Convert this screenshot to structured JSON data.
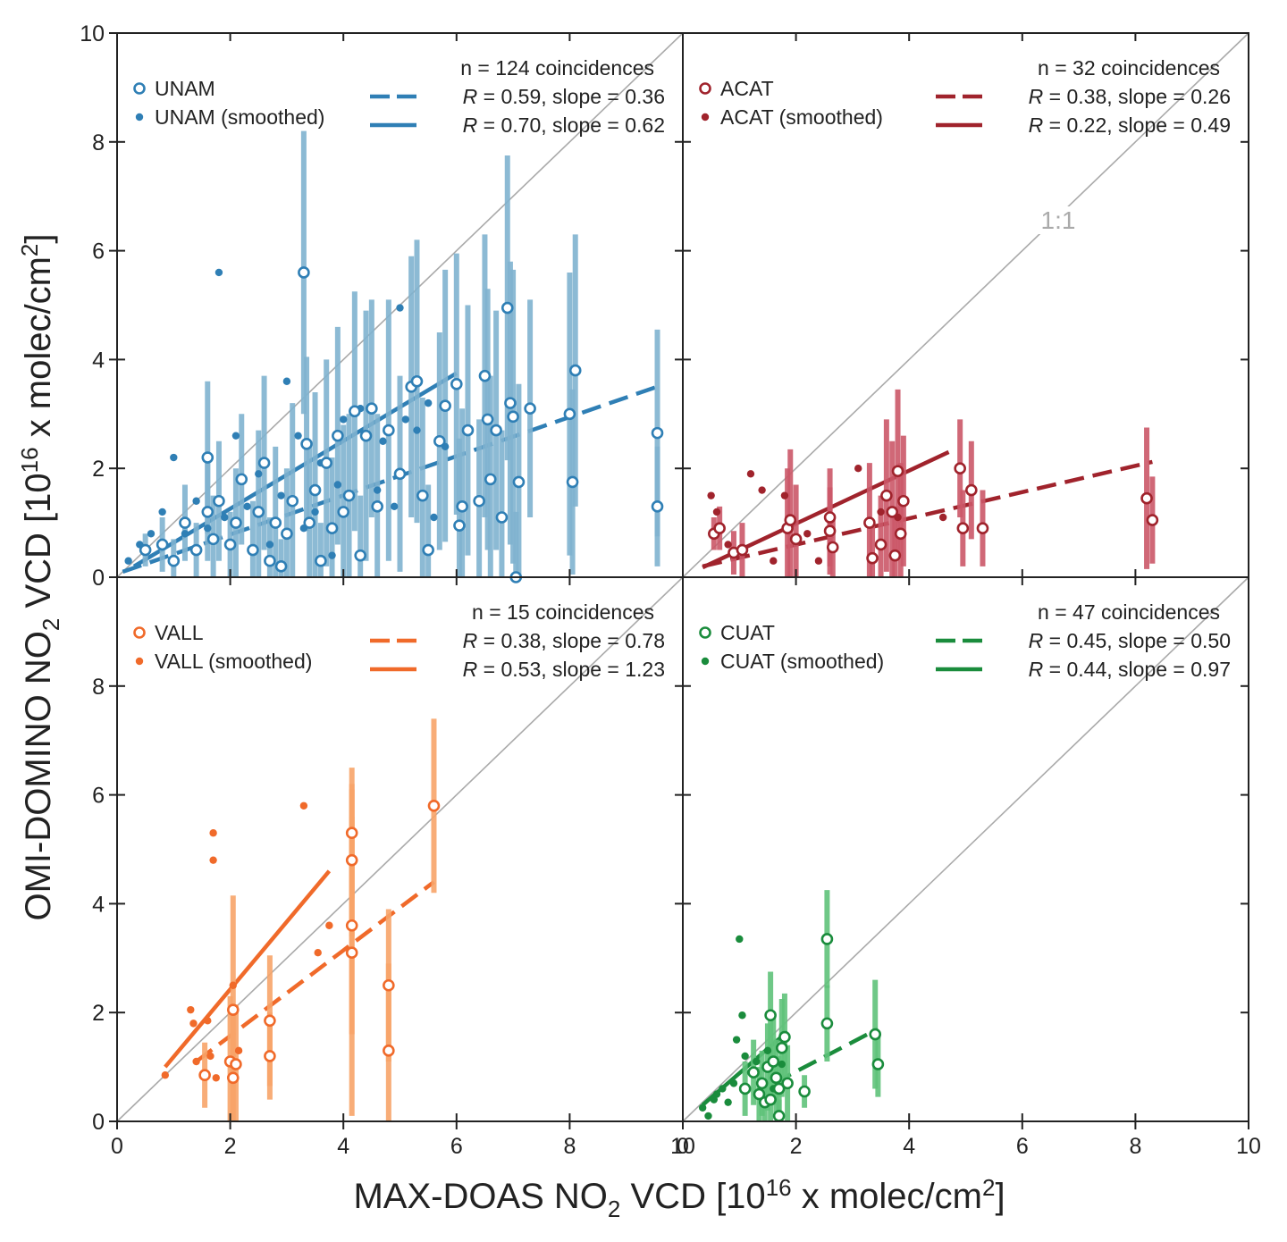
{
  "chart_data": {
    "type": "scatter",
    "title": "",
    "xlabel": "MAX-DOAS NO2 VCD [10^16 x molec/cm2]",
    "ylabel": "OMI-DOMINO NO2 VCD [10^16 x molec/cm2]",
    "xlabel_parts": {
      "pre": "MAX-DOAS NO",
      "sub": "2",
      "mid": " VCD [10",
      "sup1": "16",
      "mid2": " x molec/cm",
      "sup2": "2",
      "post": "]"
    },
    "ylabel_parts": {
      "pre": "OMI-DOMINO NO",
      "sub": "2",
      "mid": " VCD [10",
      "sup1": "16",
      "mid2": " x molec/cm",
      "sup2": "2",
      "post": "]"
    },
    "xlim": [
      0,
      10
    ],
    "ylim": [
      0,
      10
    ],
    "xticks": [
      0,
      2,
      4,
      6,
      8,
      10
    ],
    "yticks_top": [
      2,
      4,
      6,
      8,
      10
    ],
    "yticks_bottom": [
      0,
      2,
      4,
      6,
      8
    ],
    "one_to_one_label": "1:1",
    "panels": [
      {
        "station": "UNAM",
        "color": "#2f7fb5",
        "err_color": "#7fb3cf",
        "n_label": "n = 124 coincidences",
        "legend_open": "UNAM",
        "legend_smoothed": "UNAM (smoothed)",
        "fit_dashed": {
          "R": "0.59",
          "slope": "0.36",
          "text": " = 0.59, slope = 0.36",
          "x": [
            0.1,
            9.6
          ],
          "y": [
            0.1,
            3.52
          ]
        },
        "fit_solid": {
          "R": "0.70",
          "slope": "0.62",
          "text": " = 0.70, slope = 0.62",
          "x": [
            0.3,
            6.0
          ],
          "y": [
            0.2,
            3.75
          ]
        },
        "open_points": [
          [
            0.5,
            0.5,
            0.3
          ],
          [
            0.8,
            0.6,
            0.5
          ],
          [
            1.0,
            0.3,
            0.4
          ],
          [
            1.2,
            1.0,
            0.7
          ],
          [
            1.4,
            0.5,
            0.5
          ],
          [
            1.6,
            2.2,
            1.4
          ],
          [
            1.6,
            1.2,
            0.9
          ],
          [
            1.7,
            0.7,
            0.8
          ],
          [
            1.8,
            1.4,
            1.1
          ],
          [
            2.0,
            0.6,
            0.6
          ],
          [
            2.1,
            1.0,
            1.0
          ],
          [
            2.2,
            1.8,
            1.2
          ],
          [
            2.4,
            0.5,
            0.9
          ],
          [
            2.5,
            1.2,
            1.5
          ],
          [
            2.6,
            2.1,
            1.6
          ],
          [
            2.7,
            0.3,
            0.8
          ],
          [
            2.8,
            1.0,
            1.4
          ],
          [
            2.9,
            0.2,
            0.5
          ],
          [
            3.0,
            0.8,
            1.2
          ],
          [
            3.1,
            1.4,
            1.8
          ],
          [
            3.3,
            5.6,
            2.6
          ],
          [
            3.35,
            2.45,
            1.6
          ],
          [
            3.4,
            1.0,
            1.4
          ],
          [
            3.5,
            1.6,
            1.8
          ],
          [
            3.6,
            0.3,
            0.7
          ],
          [
            3.7,
            2.1,
            1.9
          ],
          [
            3.8,
            0.9,
            1.3
          ],
          [
            3.9,
            2.6,
            2.0
          ],
          [
            4.0,
            1.2,
            1.6
          ],
          [
            4.1,
            1.5,
            1.5
          ],
          [
            4.2,
            3.05,
            2.2
          ],
          [
            4.3,
            0.4,
            1.1
          ],
          [
            4.4,
            2.6,
            2.3
          ],
          [
            4.5,
            3.1,
            2.0
          ],
          [
            4.6,
            1.3,
            1.7
          ],
          [
            4.8,
            2.7,
            2.4
          ],
          [
            5.0,
            1.9,
            1.8
          ],
          [
            5.2,
            3.5,
            2.4
          ],
          [
            5.3,
            3.6,
            2.6
          ],
          [
            5.4,
            1.5,
            1.8
          ],
          [
            5.5,
            0.5,
            1.2
          ],
          [
            5.7,
            2.5,
            2.0
          ],
          [
            5.8,
            3.15,
            2.5
          ],
          [
            6.0,
            3.55,
            2.4
          ],
          [
            6.05,
            0.95,
            1.6
          ],
          [
            6.1,
            1.3,
            1.8
          ],
          [
            6.2,
            2.7,
            2.3
          ],
          [
            6.4,
            1.4,
            1.5
          ],
          [
            6.5,
            3.7,
            2.6
          ],
          [
            6.55,
            2.9,
            2.4
          ],
          [
            6.6,
            1.8,
            1.9
          ],
          [
            6.7,
            2.7,
            2.2
          ],
          [
            6.8,
            1.1,
            1.6
          ],
          [
            6.9,
            4.95,
            2.8
          ],
          [
            6.95,
            3.2,
            2.6
          ],
          [
            7.0,
            2.95,
            2.7
          ],
          [
            7.05,
            0.0,
            1.2
          ],
          [
            7.1,
            1.75,
            1.8
          ],
          [
            7.3,
            3.1,
            2.0
          ],
          [
            8.0,
            3.0,
            2.6
          ],
          [
            8.05,
            1.75,
            1.7
          ],
          [
            8.1,
            3.8,
            2.5
          ],
          [
            9.55,
            2.65,
            1.9
          ],
          [
            9.55,
            1.3,
            1.1
          ]
        ],
        "smoothed_points": [
          [
            0.2,
            0.3
          ],
          [
            0.4,
            0.6
          ],
          [
            0.6,
            0.8
          ],
          [
            0.8,
            1.2
          ],
          [
            1.0,
            2.2
          ],
          [
            1.2,
            0.8
          ],
          [
            1.4,
            1.4
          ],
          [
            1.6,
            0.9
          ],
          [
            1.8,
            5.6
          ],
          [
            1.9,
            1.1
          ],
          [
            2.1,
            2.6
          ],
          [
            2.3,
            1.3
          ],
          [
            2.5,
            1.9
          ],
          [
            2.7,
            0.6
          ],
          [
            2.9,
            1.5
          ],
          [
            3.0,
            3.6
          ],
          [
            3.2,
            2.6
          ],
          [
            3.3,
            0.9
          ],
          [
            3.5,
            1.2
          ],
          [
            3.6,
            2.1
          ],
          [
            3.8,
            0.4
          ],
          [
            3.9,
            1.7
          ],
          [
            4.0,
            2.9
          ],
          [
            4.3,
            3.1
          ],
          [
            4.6,
            1.6
          ],
          [
            4.7,
            2.5
          ],
          [
            4.9,
            1.3
          ],
          [
            5.0,
            4.95
          ],
          [
            5.1,
            2.9
          ],
          [
            5.3,
            2.7
          ],
          [
            5.5,
            3.2
          ],
          [
            5.6,
            1.1
          ],
          [
            5.8,
            2.4
          ]
        ]
      },
      {
        "station": "ACAT",
        "color": "#a0232c",
        "err_color": "#cb5868",
        "n_label": "n = 32 coincidences",
        "legend_open": "ACAT",
        "legend_smoothed": "ACAT (smoothed)",
        "fit_dashed": {
          "R": "0.38",
          "slope": "0.26",
          "text": " = 0.38, slope = 0.26",
          "x": [
            0.35,
            8.3
          ],
          "y": [
            0.2,
            2.12
          ]
        },
        "fit_solid": {
          "R": "0.22",
          "slope": "0.49",
          "text": " = 0.22, slope = 0.49",
          "x": [
            0.35,
            4.7
          ],
          "y": [
            0.18,
            2.3
          ]
        },
        "open_points": [
          [
            0.55,
            0.8,
            0.3
          ],
          [
            0.65,
            0.9,
            0.4
          ],
          [
            0.9,
            0.45,
            0.4
          ],
          [
            1.05,
            0.5,
            0.5
          ],
          [
            1.85,
            0.9,
            1.1
          ],
          [
            1.9,
            1.05,
            1.3
          ],
          [
            2.0,
            0.7,
            1.0
          ],
          [
            2.6,
            1.1,
            0.9
          ],
          [
            2.6,
            0.85,
            0.8
          ],
          [
            2.65,
            0.55,
            0.6
          ],
          [
            3.3,
            1.0,
            1.1
          ],
          [
            3.35,
            0.35,
            0.7
          ],
          [
            3.5,
            0.6,
            0.9
          ],
          [
            3.6,
            1.5,
            1.4
          ],
          [
            3.7,
            1.2,
            1.3
          ],
          [
            3.75,
            0.4,
            0.9
          ],
          [
            3.8,
            1.95,
            1.5
          ],
          [
            3.85,
            0.8,
            1.3
          ],
          [
            3.9,
            1.4,
            1.2
          ],
          [
            4.9,
            2.0,
            0.9
          ],
          [
            4.95,
            0.9,
            0.7
          ],
          [
            5.1,
            1.6,
            0.9
          ],
          [
            5.3,
            0.9,
            0.7
          ],
          [
            8.2,
            1.45,
            1.3
          ],
          [
            8.3,
            1.05,
            0.8
          ]
        ],
        "smoothed_points": [
          [
            0.5,
            1.5
          ],
          [
            0.6,
            1.2
          ],
          [
            0.8,
            0.6
          ],
          [
            1.2,
            1.9
          ],
          [
            1.4,
            1.6
          ],
          [
            1.6,
            0.3
          ],
          [
            1.8,
            1.5
          ],
          [
            2.2,
            0.8
          ],
          [
            2.4,
            0.3
          ],
          [
            3.1,
            2.0
          ],
          [
            3.5,
            1.2
          ],
          [
            3.8,
            1.1
          ],
          [
            4.6,
            1.1
          ]
        ]
      },
      {
        "station": "VALL",
        "color": "#f06a2a",
        "err_color": "#f7a469",
        "n_label": "n = 15 coincidences",
        "legend_open": "VALL",
        "legend_smoothed": "VALL (smoothed)",
        "fit_dashed": {
          "R": "0.38",
          "slope": "0.78",
          "text": " = 0.38, slope = 0.78",
          "x": [
            1.4,
            5.6
          ],
          "y": [
            1.1,
            4.4
          ]
        },
        "fit_solid": {
          "R": "0.53",
          "slope": "1.23",
          "text": " = 0.53, slope = 1.23",
          "x": [
            0.85,
            3.75
          ],
          "y": [
            1.0,
            4.6
          ]
        },
        "open_points": [
          [
            1.55,
            0.85,
            0.6
          ],
          [
            2.0,
            1.1,
            1.2
          ],
          [
            2.05,
            0.8,
            1.2
          ],
          [
            2.05,
            2.05,
            2.1
          ],
          [
            2.1,
            1.05,
            1.1
          ],
          [
            2.7,
            1.85,
            1.2
          ],
          [
            2.7,
            1.2,
            0.8
          ],
          [
            4.15,
            5.3,
            1.2
          ],
          [
            4.15,
            4.8,
            1.4
          ],
          [
            4.15,
            3.6,
            2.0
          ],
          [
            4.15,
            3.1,
            3.0
          ],
          [
            4.8,
            2.5,
            1.4
          ],
          [
            4.8,
            1.3,
            1.6
          ],
          [
            5.6,
            5.8,
            1.6
          ]
        ],
        "smoothed_points": [
          [
            0.85,
            0.85
          ],
          [
            1.3,
            2.05
          ],
          [
            1.35,
            1.8
          ],
          [
            1.4,
            1.1
          ],
          [
            1.6,
            1.85
          ],
          [
            1.65,
            1.2
          ],
          [
            1.7,
            5.3
          ],
          [
            1.7,
            4.8
          ],
          [
            1.75,
            0.8
          ],
          [
            2.05,
            2.5
          ],
          [
            2.15,
            1.3
          ],
          [
            3.3,
            5.8
          ],
          [
            3.55,
            3.1
          ],
          [
            3.75,
            3.6
          ]
        ]
      },
      {
        "station": "CUAT",
        "color": "#1a8c3c",
        "err_color": "#5fc27a",
        "n_label": "n = 47 coincidences",
        "legend_open": "CUAT",
        "legend_smoothed": "CUAT (smoothed)",
        "fit_dashed": {
          "R": "0.45",
          "slope": "0.50",
          "text": " = 0.45, slope = 0.50",
          "x": [
            1.6,
            3.45
          ],
          "y": [
            0.7,
            1.7
          ]
        },
        "fit_solid": {
          "R": "0.44",
          "slope": "0.97",
          "text": " = 0.44, slope = 0.97",
          "x": [
            0.35,
            1.85
          ],
          "y": [
            0.3,
            1.65
          ]
        },
        "open_points": [
          [
            1.1,
            0.6,
            0.5
          ],
          [
            1.25,
            0.9,
            0.6
          ],
          [
            1.35,
            0.5,
            0.5
          ],
          [
            1.4,
            0.7,
            0.6
          ],
          [
            1.45,
            0.35,
            0.4
          ],
          [
            1.5,
            1.0,
            0.8
          ],
          [
            1.55,
            1.95,
            0.8
          ],
          [
            1.55,
            0.4,
            0.5
          ],
          [
            1.6,
            1.1,
            0.8
          ],
          [
            1.65,
            0.8,
            0.7
          ],
          [
            1.7,
            0.6,
            0.6
          ],
          [
            1.7,
            0.1,
            0.3
          ],
          [
            1.75,
            1.35,
            0.9
          ],
          [
            1.8,
            1.55,
            0.8
          ],
          [
            1.85,
            0.7,
            0.7
          ],
          [
            2.15,
            0.55,
            0.3
          ],
          [
            2.55,
            3.35,
            0.9
          ],
          [
            2.55,
            1.8,
            0.7
          ],
          [
            3.4,
            1.6,
            1.0
          ],
          [
            3.45,
            1.05,
            0.6
          ]
        ],
        "smoothed_points": [
          [
            0.35,
            0.25
          ],
          [
            0.45,
            0.1
          ],
          [
            0.55,
            0.4
          ],
          [
            0.6,
            0.5
          ],
          [
            0.7,
            0.6
          ],
          [
            0.8,
            0.35
          ],
          [
            0.9,
            0.7
          ],
          [
            0.95,
            1.5
          ],
          [
            1.0,
            3.35
          ],
          [
            1.05,
            1.95
          ],
          [
            1.1,
            1.2
          ],
          [
            1.2,
            0.9
          ],
          [
            1.3,
            1.1
          ],
          [
            1.4,
            0.7
          ],
          [
            1.5,
            1.3
          ],
          [
            1.6,
            0.6
          ],
          [
            1.75,
            1.05
          ]
        ]
      }
    ]
  }
}
